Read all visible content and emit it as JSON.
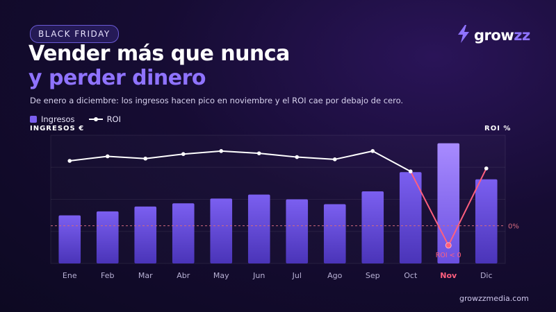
{
  "header": {
    "badge": "BLACK FRIDAY",
    "title_line1": "Vender más que nunca",
    "title_line2": "y perder dinero",
    "subtitle": "De enero a diciembre: los ingresos hacen pico en noviembre y el ROI cae por debajo de cero."
  },
  "logo": {
    "icon": "bolt-icon",
    "text_main": "grow",
    "text_accent": "zz"
  },
  "footer": {
    "url": "growzzmedia.com"
  },
  "colors": {
    "bar": "#7b5ff0",
    "bar_highlight": "#a88bff",
    "roi_line": "#ffffff",
    "roi_negative": "#ff5f7e",
    "zero_line": "#d46a7e",
    "accent_text": "#8f73ff"
  },
  "chart_data": {
    "type": "bar",
    "categories": [
      "Ene",
      "Feb",
      "Mar",
      "Abr",
      "May",
      "Jun",
      "Jul",
      "Ago",
      "Sep",
      "Oct",
      "Nov",
      "Dic"
    ],
    "highlight_category": "Nov",
    "legend": [
      "Ingresos",
      "ROI"
    ],
    "left_axis_label": "INGRESOS €",
    "right_axis_label": "ROI %",
    "zero_label": "0%",
    "annotation": "ROI < 0",
    "series": [
      {
        "name": "Ingresos",
        "kind": "bar",
        "axis": "left",
        "values": [
          60,
          65,
          71,
          75,
          81,
          86,
          80,
          74,
          90,
          114,
          150,
          105
        ]
      },
      {
        "name": "ROI",
        "kind": "line",
        "axis": "right",
        "values": [
          86,
          92,
          89,
          95,
          99,
          96,
          91,
          88,
          99,
          72,
          -26,
          76
        ]
      }
    ],
    "left_ylim": [
      0,
      160
    ],
    "right_ylim": [
      -50,
      120
    ],
    "grid": true,
    "legend_position": "top-left"
  }
}
